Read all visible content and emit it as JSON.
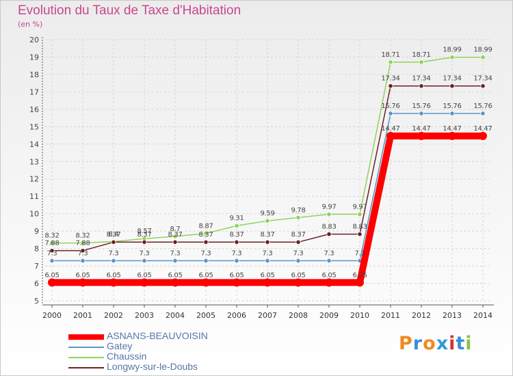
{
  "title": "Evolution du Taux de Taxe d'Habitation",
  "unit_label": "(en %)",
  "logo": {
    "text": "Proxiti",
    "colors": [
      "#f08a1c",
      "#3a8ed8",
      "#f08a1c",
      "#2e9bd6",
      "#d9322b",
      "#3a8ed8",
      "#8cc43c"
    ]
  },
  "chart_data": {
    "type": "line",
    "title": "Evolution du Taux de Taxe d'Habitation",
    "ylabel": "(en %)",
    "xlabel": "",
    "x": [
      "2000",
      "2001",
      "2002",
      "2003",
      "2004",
      "2005",
      "2006",
      "2007",
      "2008",
      "2009",
      "2010",
      "2011",
      "2012",
      "2013",
      "2014"
    ],
    "ylim": [
      5,
      20
    ],
    "yticks": [
      "5",
      "6",
      "7",
      "8",
      "9",
      "10",
      "11",
      "12",
      "13",
      "14",
      "15",
      "16",
      "17",
      "18",
      "19",
      "20"
    ],
    "grid": true,
    "legend_position": "bottom-left",
    "series": [
      {
        "name": "ASNANS-BEAUVOISIN",
        "color": "#ff0000",
        "values": [
          6.05,
          6.05,
          6.05,
          6.05,
          6.05,
          6.05,
          6.05,
          6.05,
          6.05,
          6.05,
          6.05,
          14.47,
          14.47,
          14.47,
          14.47
        ],
        "labels": [
          "6.05",
          "6.05",
          "6.05",
          "6.05",
          "6.05",
          "6.05",
          "6.05",
          "6.05",
          "6.05",
          "6.05",
          "6.05",
          "14.47",
          "14.47",
          "14.47",
          "14.47"
        ]
      },
      {
        "name": "Gatey",
        "color": "#5b93c7",
        "values": [
          7.3,
          7.3,
          7.3,
          7.3,
          7.3,
          7.3,
          7.3,
          7.3,
          7.3,
          7.3,
          7.3,
          15.76,
          15.76,
          15.76,
          15.76
        ],
        "labels": [
          "7.3",
          "7.3",
          "7.3",
          "7.3",
          "7.3",
          "7.3",
          "7.3",
          "7.3",
          "7.3",
          "7.3",
          "7.3",
          "15.76",
          "15.76",
          "15.76",
          "15.76"
        ]
      },
      {
        "name": "Chaussin",
        "color": "#8fd35a",
        "values": [
          8.32,
          8.32,
          8.4,
          8.57,
          8.7,
          8.87,
          9.31,
          9.59,
          9.78,
          9.97,
          9.97,
          18.71,
          18.71,
          18.99,
          18.99
        ],
        "labels": [
          "8.32",
          "8.32",
          "8.4",
          "8.57",
          "8.7",
          "8.87",
          "9.31",
          "9.59",
          "9.78",
          "9.97",
          "9.97",
          "18.71",
          "18.71",
          "18.99",
          "18.99"
        ]
      },
      {
        "name": "Longwy-sur-le-Doubs",
        "color": "#6b1f25",
        "values": [
          7.88,
          7.88,
          8.37,
          8.37,
          8.37,
          8.37,
          8.37,
          8.37,
          8.37,
          8.83,
          8.83,
          17.34,
          17.34,
          17.34,
          17.34
        ],
        "labels": [
          "7.88",
          "7.88",
          "8.37",
          "8.37",
          "8.37",
          "8.37",
          "8.37",
          "8.37",
          "8.37",
          "8.83",
          "8.83",
          "17.34",
          "17.34",
          "17.34",
          "17.34"
        ]
      }
    ]
  }
}
